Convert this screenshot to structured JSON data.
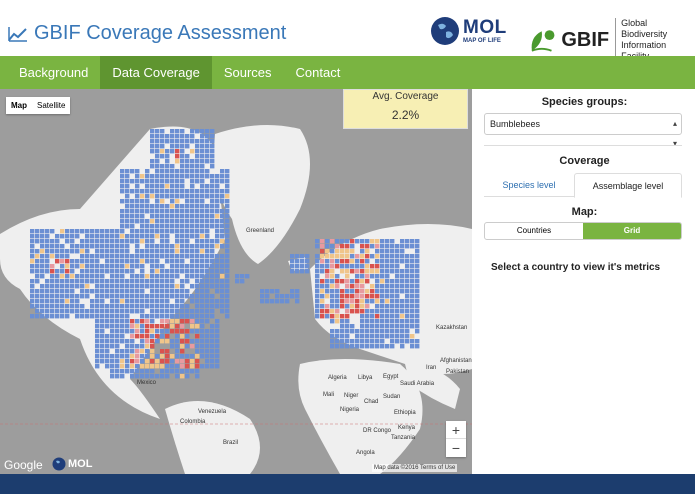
{
  "header": {
    "title": "GBIF Coverage Assessment",
    "mol_big": "MOL",
    "mol_small": "MAP OF LIFE",
    "gbif_word": "GBIF",
    "gbif_sub1": "Global Biodiversity",
    "gbif_sub2": "Information Facility"
  },
  "nav": [
    {
      "label": "Background"
    },
    {
      "label": "Data Coverage"
    },
    {
      "label": "Sources"
    },
    {
      "label": "Contact"
    }
  ],
  "map": {
    "type_map": "Map",
    "type_satellite": "Satellite",
    "avg_label": "Avg. Coverage",
    "avg_value": "2.2%",
    "zoom_in": "+",
    "zoom_out": "−",
    "google": "Google",
    "mol_mark": "MOL",
    "attribution": "Map data ©2016  Terms of Use",
    "labels": {
      "greenland": "Greenland",
      "mexico": "Mexico",
      "venezuela": "Venezuela",
      "colombia": "Colombia",
      "brazil": "Brazil",
      "algeria": "Algeria",
      "libya": "Libya",
      "egypt": "Egypt",
      "saudi": "Saudi Arabia",
      "mali": "Mali",
      "niger": "Niger",
      "chad": "Chad",
      "sudan": "Sudan",
      "nigeria": "Nigeria",
      "ethiopia": "Ethiopia",
      "kenya": "Kenya",
      "tanzania": "Tanzania",
      "drcongo": "DR Congo",
      "angola": "Angola",
      "kazakhstan": "Kazakhstan",
      "afghanistan": "Afghanistan",
      "pakistan": "Pakistan",
      "iran": "Iran"
    }
  },
  "panel": {
    "species_groups_title": "Species groups:",
    "species_selected": "Bumblebees",
    "coverage_title": "Coverage",
    "tab_species": "Species level",
    "tab_assemblage": "Assemblage level",
    "map_title": "Map:",
    "toggle_countries": "Countries",
    "toggle_grid": "Grid",
    "message": "Select a country to view it's metrics"
  },
  "colors": {
    "nav_green": "#7ab441",
    "nav_active": "#5f9530",
    "title_blue": "#3a78b8",
    "grid_blue": "#6b8fd3",
    "hot_red": "#d9534f",
    "avg_bg": "#f7efb4"
  }
}
